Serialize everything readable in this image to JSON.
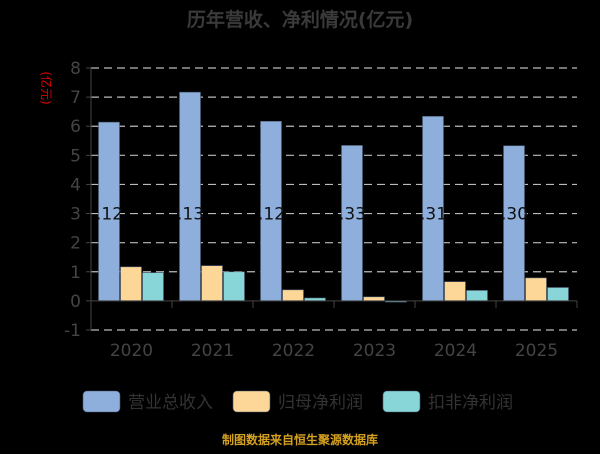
{
  "chart_data": {
    "type": "bar",
    "title": "历年营收、净利情况(亿元)",
    "ylabel": "(亿元)",
    "xlabel": "",
    "ylim": [
      -1,
      8
    ],
    "yticks": [
      "-1",
      "0",
      "1",
      "2",
      "3",
      "4",
      "5",
      "6",
      "7",
      "8"
    ],
    "grid": true,
    "legend_position": "bottom",
    "categories": [
      "2020",
      "2021",
      "2022",
      "2023",
      "2024",
      "2025"
    ],
    "series": [
      {
        "name": "营业总收入",
        "color": "#8eaedc",
        "values": [
          6.14,
          7.17,
          6.17,
          5.34,
          6.34,
          5.33
        ]
      },
      {
        "name": "归母净利润",
        "color": "#fdd797",
        "values": [
          1.17,
          1.21,
          0.38,
          0.14,
          0.66,
          0.79
        ]
      },
      {
        "name": "扣非净利润",
        "color": "#89d6d8",
        "values": [
          0.97,
          1.0,
          0.1,
          -0.04,
          0.36,
          0.46
        ]
      }
    ],
    "bar_labels": [
      ".12",
      ".13",
      ".12",
      ".33",
      ".31",
      ".30"
    ]
  },
  "footer": "制图数据来自恒生聚源数据库"
}
